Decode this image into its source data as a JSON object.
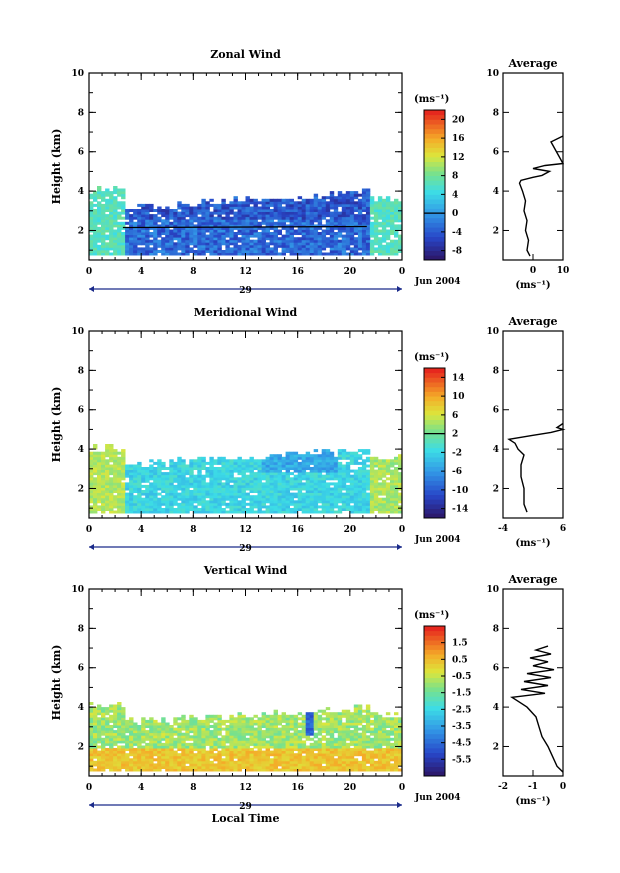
{
  "chart_data": [
    {
      "type": "heatmap",
      "title": "Zonal Wind",
      "ylabel": "Height (km)",
      "yticks": [
        "2",
        "4",
        "6",
        "8",
        "10"
      ],
      "xticks": [
        "0",
        "4",
        "8",
        "12",
        "16",
        "20",
        "0"
      ],
      "day_label": "29",
      "date_label": "Jun 2004",
      "colorbar": {
        "unit": "(ms⁻¹)",
        "labels": [
          "20",
          "16",
          "12",
          "8",
          "4",
          "0",
          "-4",
          "-8"
        ],
        "range": [
          -10,
          22
        ]
      },
      "ylim": [
        0.5,
        10
      ],
      "xlim": [
        0,
        24
      ],
      "profile": {
        "title": "Average",
        "ylabel": "",
        "xticks": [
          "0",
          "10"
        ],
        "xlim": [
          -10,
          10
        ],
        "unit": "(ms⁻¹)",
        "yticks": [
          "2",
          "4",
          "6",
          "8",
          "10"
        ],
        "points": [
          [
            -1,
            0.7
          ],
          [
            -2,
            1.0
          ],
          [
            -1.5,
            1.5
          ],
          [
            -2.5,
            2.0
          ],
          [
            -2,
            2.5
          ],
          [
            -3,
            3.0
          ],
          [
            -2.5,
            3.5
          ],
          [
            -3.5,
            4.0
          ],
          [
            -4.5,
            4.4
          ],
          [
            -4,
            4.55
          ],
          [
            0,
            4.7
          ],
          [
            3,
            4.8
          ],
          [
            5.5,
            5.0
          ],
          [
            0,
            5.15
          ],
          [
            4,
            5.3
          ],
          [
            10,
            5.4
          ],
          [
            6,
            6.5
          ],
          [
            10,
            6.8
          ]
        ]
      }
    },
    {
      "type": "heatmap",
      "title": "Meridional Wind",
      "ylabel": "Height (km)",
      "yticks": [
        "2",
        "4",
        "6",
        "8",
        "10"
      ],
      "xticks": [
        "0",
        "4",
        "8",
        "12",
        "16",
        "20",
        "0"
      ],
      "day_label": "29",
      "date_label": "Jun 2004",
      "colorbar": {
        "unit": "(ms⁻¹)",
        "labels": [
          "14",
          "10",
          "6",
          "2",
          "-2",
          "-6",
          "-10",
          "-14"
        ],
        "range": [
          -16,
          16
        ]
      },
      "ylim": [
        0.5,
        10
      ],
      "xlim": [
        0,
        24
      ],
      "profile": {
        "title": "Average",
        "ylabel": "",
        "xticks": [
          "-4",
          "6"
        ],
        "xlim": [
          -4,
          6
        ],
        "unit": "(ms⁻¹)",
        "yticks": [
          "2",
          "4",
          "6",
          "8",
          "10"
        ],
        "points": [
          [
            0,
            0.8
          ],
          [
            -0.5,
            1.2
          ],
          [
            -0.5,
            2.0
          ],
          [
            -1,
            2.6
          ],
          [
            -1,
            3.2
          ],
          [
            -0.5,
            3.7
          ],
          [
            -1.5,
            4.0
          ],
          [
            -2,
            4.3
          ],
          [
            -3,
            4.5
          ],
          [
            -1,
            4.6
          ],
          [
            1,
            4.7
          ],
          [
            4,
            4.85
          ],
          [
            6,
            5.0
          ],
          [
            5,
            5.1
          ],
          [
            6,
            5.3
          ]
        ]
      }
    },
    {
      "type": "heatmap",
      "title": "Vertical Wind",
      "ylabel": "Height (km)",
      "xlabel": "Local Time",
      "yticks": [
        "2",
        "4",
        "6",
        "8",
        "10"
      ],
      "xticks": [
        "0",
        "4",
        "8",
        "12",
        "16",
        "20",
        "0"
      ],
      "day_label": "29",
      "date_label": "Jun 2004",
      "colorbar": {
        "unit": "(ms⁻¹)",
        "labels": [
          "1.5",
          "0.5",
          "-0.5",
          "-1.5",
          "-2.5",
          "-3.5",
          "-4.5",
          "-5.5"
        ],
        "range": [
          -6.5,
          2.5
        ]
      },
      "ylim": [
        0.5,
        10
      ],
      "xlim": [
        0,
        24
      ],
      "profile": {
        "title": "Average",
        "ylabel": "",
        "xticks": [
          "-2",
          "-1",
          "0"
        ],
        "xlim": [
          -2,
          0
        ],
        "unit": "(ms⁻¹)",
        "yticks": [
          "2",
          "4",
          "6",
          "8",
          "10"
        ],
        "points": [
          [
            0,
            0.7
          ],
          [
            -0.2,
            1.0
          ],
          [
            -0.35,
            1.5
          ],
          [
            -0.5,
            2.0
          ],
          [
            -0.7,
            2.5
          ],
          [
            -0.8,
            3.0
          ],
          [
            -0.9,
            3.5
          ],
          [
            -1.2,
            4.0
          ],
          [
            -1.5,
            4.3
          ],
          [
            -1.7,
            4.5
          ],
          [
            -0.6,
            4.7
          ],
          [
            -1.4,
            4.9
          ],
          [
            -0.5,
            5.1
          ],
          [
            -1.3,
            5.3
          ],
          [
            -0.4,
            5.5
          ],
          [
            -1.2,
            5.7
          ],
          [
            -0.3,
            5.9
          ],
          [
            -1.0,
            6.1
          ],
          [
            -0.5,
            6.3
          ],
          [
            -1.1,
            6.5
          ],
          [
            -0.4,
            6.7
          ],
          [
            -0.9,
            6.9
          ],
          [
            -0.5,
            7.1
          ]
        ]
      }
    }
  ]
}
